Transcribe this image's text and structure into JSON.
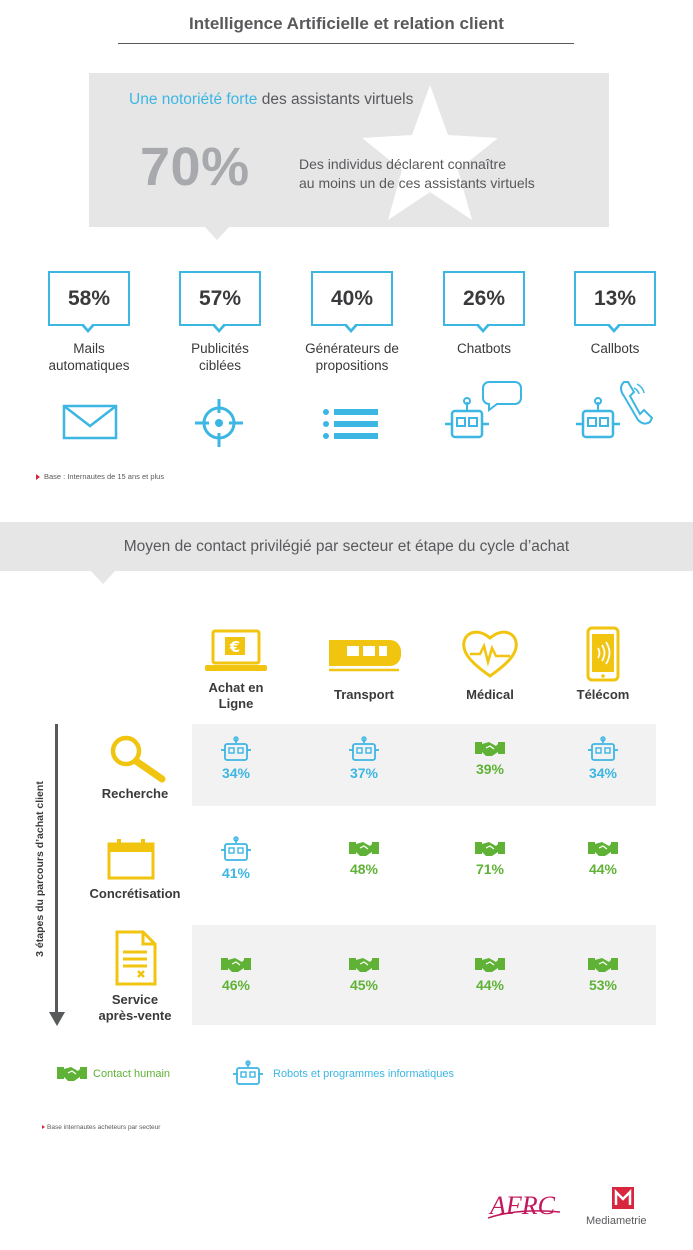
{
  "header": {
    "title": "Intelligence Artificielle et relation client"
  },
  "awareness": {
    "headline_highlight": "Une notoriété forte",
    "headline_rest": " des assistants virtuels",
    "big_percent": "70%",
    "description_line1": "Des individus déclarent connaître",
    "description_line2": "au moins  un de ces assistants virtuels"
  },
  "chart_data": [
    {
      "type": "bar",
      "categories": [
        "Mails automatiques",
        "Publicités ciblées",
        "Générateurs de propositions",
        "Chatbots",
        "Callbots"
      ],
      "values": [
        58,
        57,
        40,
        26,
        13
      ],
      "value_labels": [
        "58%",
        "57%",
        "40%",
        "26%",
        "13%"
      ],
      "label_lines": [
        [
          "Mails",
          "automatiques"
        ],
        [
          "Publicités",
          "ciblées"
        ],
        [
          "Générateurs de",
          "propositions"
        ],
        [
          "Chatbots"
        ],
        [
          "Callbots"
        ]
      ],
      "icons": [
        "envelope-icon",
        "target-icon",
        "list-icon",
        "chatbot-icon",
        "callbot-icon"
      ],
      "base_note": "Base : Internautes de 15 ans et plus"
    },
    {
      "type": "table",
      "title": "Moyen de contact privilégié par secteur et étape du cycle d’achat",
      "columns": [
        {
          "label_lines": [
            "Achat en",
            "Ligne"
          ],
          "icon": "laptop-euro-icon"
        },
        {
          "label_lines": [
            "Transport"
          ],
          "icon": "train-icon"
        },
        {
          "label_lines": [
            "Médical"
          ],
          "icon": "heart-pulse-icon"
        },
        {
          "label_lines": [
            "Télécom"
          ],
          "icon": "smartphone-icon"
        }
      ],
      "rows": [
        {
          "label_lines": [
            "Recherche"
          ],
          "icon": "magnifier-icon",
          "cells": [
            {
              "value": "34%",
              "type": "robot"
            },
            {
              "value": "37%",
              "type": "robot"
            },
            {
              "value": "39%",
              "type": "human"
            },
            {
              "value": "34%",
              "type": "robot"
            }
          ]
        },
        {
          "label_lines": [
            "Concrétisation"
          ],
          "icon": "calendar-icon",
          "cells": [
            {
              "value": "41%",
              "type": "robot"
            },
            {
              "value": "48%",
              "type": "human"
            },
            {
              "value": "71%",
              "type": "human"
            },
            {
              "value": "44%",
              "type": "human"
            }
          ]
        },
        {
          "label_lines": [
            "Service",
            "après-vente"
          ],
          "icon": "document-icon",
          "cells": [
            {
              "value": "46%",
              "type": "human"
            },
            {
              "value": "45%",
              "type": "human"
            },
            {
              "value": "44%",
              "type": "human"
            },
            {
              "value": "53%",
              "type": "human"
            }
          ]
        }
      ],
      "axis_label": "3 étapes du parcours d’achat client",
      "legend": [
        {
          "label": "Contact humain",
          "type": "human",
          "color": "#5fb236",
          "icon": "handshake-icon"
        },
        {
          "label": "Robots et programmes informatiques",
          "type": "robot",
          "color": "#3cb6e3",
          "icon": "robot-icon"
        }
      ],
      "base_note": "Base internautes  acheteurs par secteur"
    }
  ],
  "footer": {
    "logo_left": "AFRC",
    "logo_right": "Mediametrie"
  },
  "colors": {
    "blue": "#3cb6e3",
    "green": "#5fb236",
    "yellow": "#f1c40f",
    "grey_text": "#58595b",
    "band": "#e6e6e7",
    "red": "#d7263d"
  }
}
